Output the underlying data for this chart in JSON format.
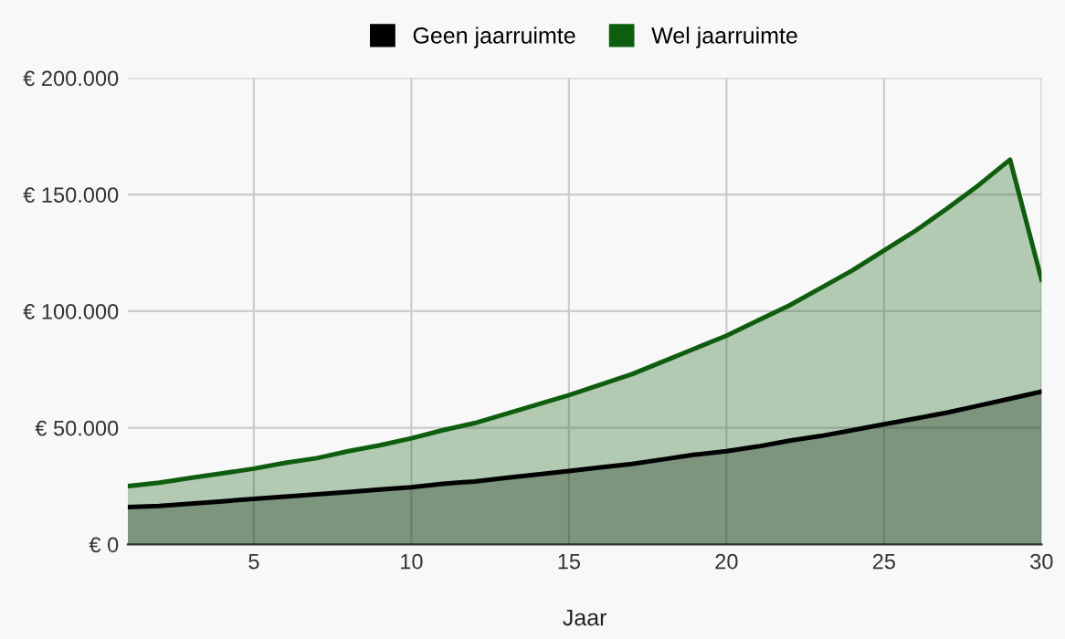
{
  "chart_data": {
    "type": "area",
    "xlabel": "Jaar",
    "legend": "top",
    "grid": true,
    "x": [
      1,
      2,
      3,
      4,
      5,
      6,
      7,
      8,
      9,
      10,
      11,
      12,
      13,
      14,
      15,
      16,
      17,
      18,
      19,
      20,
      21,
      22,
      23,
      24,
      25,
      26,
      27,
      28,
      29,
      30
    ],
    "series": [
      {
        "name": "Geen jaarruimte",
        "color": "#000000",
        "values": [
          16000,
          16500,
          17500,
          18500,
          19500,
          20500,
          21500,
          22500,
          23500,
          24500,
          26000,
          27000,
          28500,
          30000,
          31500,
          33000,
          34500,
          36500,
          38500,
          40000,
          42000,
          44500,
          46500,
          49000,
          51500,
          54000,
          56500,
          59500,
          62500,
          65500
        ]
      },
      {
        "name": "Wel jaarruimte",
        "color": "#0f5e0f",
        "values": [
          25000,
          26500,
          28500,
          30500,
          32500,
          35000,
          37000,
          40000,
          42500,
          45500,
          49000,
          52000,
          56000,
          60000,
          64000,
          68500,
          73000,
          78500,
          84000,
          89500,
          96000,
          102500,
          110000,
          117500,
          126000,
          134500,
          144000,
          154000,
          165000,
          113500
        ]
      }
    ],
    "xlim": [
      1,
      30
    ],
    "xticks": [
      5,
      10,
      15,
      20,
      25,
      30
    ],
    "ylim": [
      0,
      200000
    ],
    "yticks": [
      {
        "value": 0,
        "label": "€ 0"
      },
      {
        "value": 50000,
        "label": "€ 50.000"
      },
      {
        "value": 100000,
        "label": "€ 100.000"
      },
      {
        "value": 150000,
        "label": "€ 150.000"
      },
      {
        "value": 200000,
        "label": "€ 200.000"
      }
    ]
  }
}
